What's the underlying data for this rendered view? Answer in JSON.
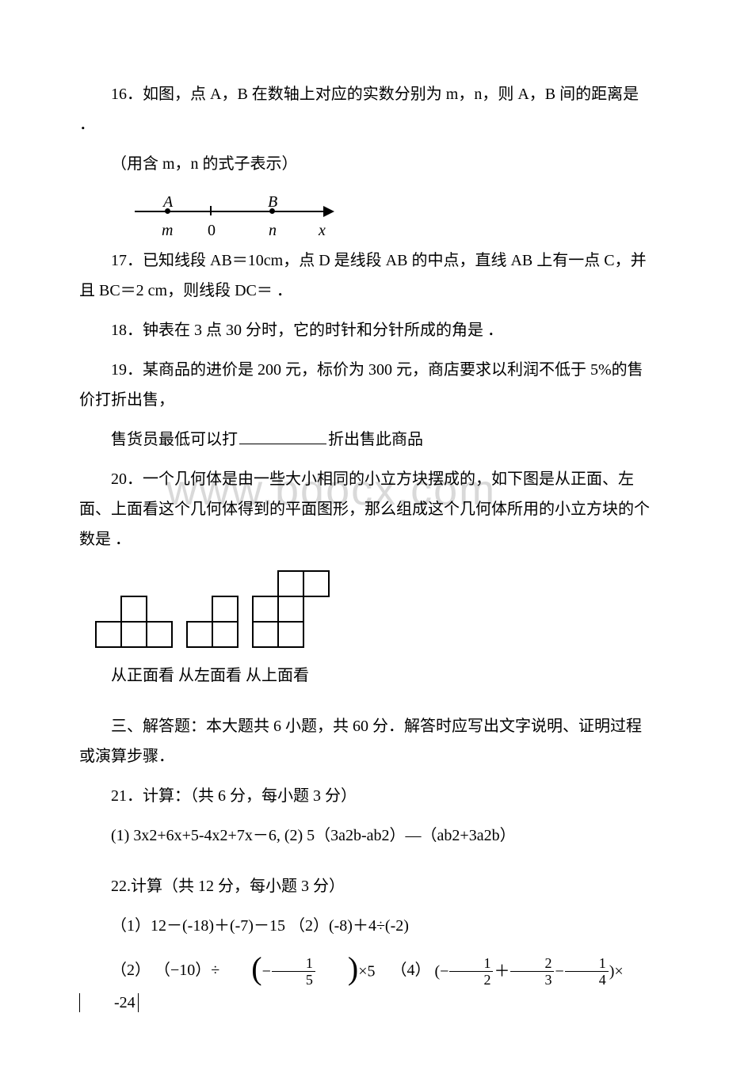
{
  "q16": {
    "line1": "16．如图，点 A，B 在数轴上对应的实数分别为 m，n，则 A，B 间的距离是 ．",
    "line2": "（用含 m，n 的式子表示）",
    "labelA": "A",
    "labelB": "B",
    "labelm": "m",
    "label0": "0",
    "labeln": "n",
    "labelx": "x"
  },
  "q17": {
    "line1": "17．已知线段 AB＝10cm，点 D 是线段 AB 的中点，直线 AB 上有一点 C，并且 BC＝2 cm，则线段 DC＝ ．"
  },
  "q18": "18．钟表在 3 点 30 分时，它的时针和分针所成的角是 ．",
  "q19": {
    "line1": "19．某商品的进价是 200 元，标价为 300 元，商店要求以利润不低于 5%的售价打折出售，",
    "line2_a": "售货员最低可以打",
    "line2_b": "折出售此商品"
  },
  "q20": {
    "text": "20．一个几何体是由一些大小相同的小立方块摆成的，如下图是从正面、左面、上面看这个几何体得到的平面图形，那么组成这个几何体所用的小立方块的个数是 ．",
    "view_labels": "从正面看 从左面看 从上面看",
    "cell": 32,
    "stroke": "#000000",
    "stroke_width": 2,
    "front": {
      "cols": 3,
      "heights": [
        1,
        2,
        1
      ]
    },
    "left": {
      "cols": 2,
      "heights": [
        1,
        2
      ]
    },
    "top": {
      "rows": [
        [
          0,
          1,
          1
        ],
        [
          1,
          1,
          0
        ],
        [
          1,
          1,
          0
        ]
      ]
    }
  },
  "watermark": "www.bdocx.com",
  "section3": "三、解答题：本大题共 6 小题，共 60 分．解答时应写出文字说明、证明过程或演算步骤．",
  "q21": {
    "title": "21．计算：（共 6 分，每小题 3 分）",
    "expr": "(1) 3x2+6x+5-4x2+7x－6, (2) 5（3a2b-ab2）—（ab2+3a2b）"
  },
  "q22": {
    "title": "22.计算（共 12 分，每小题 3 分）",
    "line1": "（1）12－(-18)＋(-7)－15 （2）(-8)＋4÷(-2)",
    "p2_label": "（2） （−10）÷",
    "p2_tail": "×5",
    "p4_label": "（4）",
    "p4_lead": "(−",
    "p4_mid1": "＋",
    "p4_mid2": "−",
    "p4_tail": ")×",
    "abs": "-24",
    "f1": {
      "num": "1",
      "den": "5"
    },
    "f2": {
      "num": "1",
      "den": "2"
    },
    "f3": {
      "num": "2",
      "den": "3"
    },
    "f4": {
      "num": "1",
      "den": "4"
    }
  },
  "colors": {
    "text": "#000000",
    "bg": "#ffffff",
    "wm": "#d9d9d9"
  }
}
